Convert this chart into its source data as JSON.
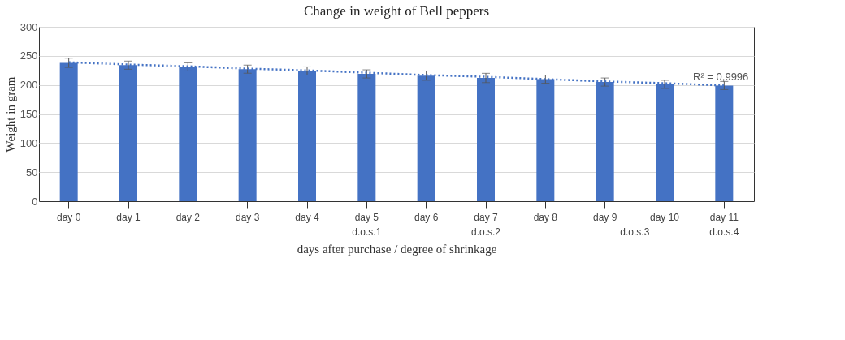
{
  "chart_data": {
    "type": "bar",
    "title": "Change in weight of Bell peppers",
    "xlabel": "days after purchase / degree of shrinkage",
    "ylabel": "Weight in gram",
    "categories": [
      "day 0",
      "day 1",
      "day 2",
      "day 3",
      "day 4",
      "day 5",
      "day 6",
      "day 7",
      "day 8",
      "day 9",
      "day 10",
      "day 11"
    ],
    "series": [
      {
        "color": "#4472c4",
        "values": [
          238,
          234,
          231,
          227,
          224,
          219,
          216,
          212,
          210,
          205,
          201,
          199
        ],
        "errors": [
          8,
          7,
          7,
          7,
          7,
          7,
          8,
          8,
          7,
          7,
          7,
          7
        ]
      },
      {
        "type": "line",
        "line_style": "dotted",
        "color": "#4472c4",
        "values": [
          239,
          235,
          232,
          228,
          225,
          221,
          217,
          214,
          210,
          206,
          203,
          199
        ]
      }
    ],
    "ylim": [
      0,
      300
    ],
    "yticks": [
      0,
      50,
      100,
      150,
      200,
      250,
      300
    ],
    "grid": "y",
    "annotations": [
      {
        "text": "R² = 0,9996",
        "x": "day 11",
        "y": 213
      },
      "d.o.s.1",
      "d.o.s.2",
      "d.o.s.3",
      "d.o.s.4"
    ]
  }
}
